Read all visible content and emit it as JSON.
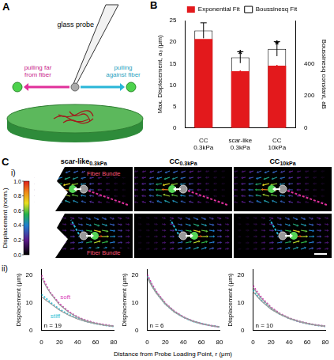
{
  "panel_labels": {
    "a": "A",
    "b": "B",
    "c": "C",
    "c_i": "i)",
    "c_ii": "ii)"
  },
  "panel_a": {
    "probe_label": "glass probe",
    "left_label": "pulling far from fiber",
    "right_label": "pulling against fiber"
  },
  "panel_c_i": {
    "headers": [
      "scar-like0.3kPa",
      "CC0.3kPa",
      "CC10kPa"
    ],
    "annotation": "Fiber Bundle",
    "colorbar": {
      "label": "Displacement (norm.)",
      "range": [
        0,
        1
      ],
      "ticks": [
        {
          "value": 0,
          "label": "0.0"
        },
        {
          "value": 0.2,
          "label": "0.2"
        },
        {
          "value": 0.4,
          "label": "0.4"
        },
        {
          "value": 0.6,
          "label": "0.6"
        },
        {
          "value": 0.8,
          "label": "0.8"
        },
        {
          "value": 1,
          "label": "1.0"
        }
      ]
    }
  },
  "panel_c_ii": {
    "x_label": "Distance from Probe Loading Point, r (μm)"
  },
  "chart_data": [
    {
      "type": "bar",
      "categories": [
        "CC0.3kPa",
        "scar-like0.3kPa",
        "CC10kPa"
      ],
      "y_label": "Max. Displacement, a₀ (μm)",
      "y2_label": "Boussinesq constant, aB",
      "series": [
        {
          "name": "Exponential Fit",
          "color": "#e3191c",
          "values": [
            20.7,
            13.2,
            14.5
          ],
          "significance": [
            null,
            "*",
            "*"
          ]
        },
        {
          "name": "Boussinesq Fit",
          "color": "#ffffff",
          "axis": "y2",
          "values": [
            605,
            438,
            491
          ],
          "errors": [
            48,
            35,
            45
          ],
          "significance": [
            null,
            "*",
            "*"
          ]
        }
      ],
      "ylim": [
        0,
        25
      ],
      "yticks": [
        0,
        5,
        10,
        15,
        20,
        25
      ],
      "y2lim": [
        0,
        667
      ],
      "y2ticks": [
        0,
        200,
        400
      ],
      "legend": "top",
      "grid": false
    },
    {
      "type": "line",
      "x": [
        0,
        5,
        10,
        20,
        30,
        40,
        50,
        60,
        70,
        80
      ],
      "y_label": "Displacement (μm)",
      "annotation": "n = 19",
      "series": [
        {
          "color": "#9a9a9a",
          "line_style": "solid",
          "values": [
            19.2,
            16.0,
            13.4,
            9.3,
            6.6,
            4.7,
            3.4,
            2.5,
            1.9,
            1.5
          ]
        },
        {
          "color": "#9a9a9a",
          "line_style": "solid",
          "values": [
            12.2,
            10.9,
            9.7,
            7.3,
            5.5,
            4.1,
            3.1,
            2.4,
            1.8,
            1.4
          ]
        },
        {
          "name": "soft",
          "color": "#d63ab5",
          "line_style": "dotted",
          "values": [
            20.0,
            16.5,
            13.6,
            9.6,
            6.8,
            4.8,
            3.5,
            2.6,
            2.0,
            1.5
          ]
        },
        {
          "name": "stiff",
          "color": "#35bfd3",
          "line_style": "dotted",
          "values": [
            13.0,
            11.6,
            10.1,
            7.6,
            5.7,
            4.3,
            3.2,
            2.4,
            1.8,
            1.4
          ]
        }
      ],
      "xlim": [
        0,
        80
      ],
      "xticks": [
        0,
        20,
        40,
        60,
        80
      ],
      "ylim": [
        0,
        22
      ],
      "yticks": [
        0,
        10,
        20
      ],
      "grid": false
    },
    {
      "type": "line",
      "x": [
        0,
        5,
        10,
        20,
        30,
        40,
        50,
        60,
        70,
        80
      ],
      "y_label": "Displacement (μm)",
      "annotation": "n = 6",
      "series": [
        {
          "color": "#9a9a9a",
          "line_style": "solid",
          "values": [
            19.5,
            16.4,
            13.8,
            9.7,
            6.8,
            4.8,
            3.4,
            2.4,
            1.7,
            1.2
          ]
        },
        {
          "color": "#9a9a9a",
          "line_style": "solid",
          "values": [
            19.0,
            16.0,
            13.4,
            9.4,
            6.6,
            4.7,
            3.3,
            2.4,
            1.7,
            1.2
          ]
        },
        {
          "color": "#d63ab5",
          "line_style": "dotted",
          "values": [
            20.2,
            16.8,
            14.0,
            9.8,
            6.9,
            4.8,
            3.4,
            2.4,
            1.7,
            1.2
          ]
        },
        {
          "color": "#35bfd3",
          "line_style": "dotted",
          "values": [
            19.6,
            16.3,
            13.6,
            9.5,
            6.7,
            4.7,
            3.3,
            2.4,
            1.7,
            1.2
          ]
        }
      ],
      "xlim": [
        0,
        80
      ],
      "xticks": [
        0,
        20,
        40,
        60,
        80
      ],
      "ylim": [
        0,
        22
      ],
      "yticks": [
        0,
        10,
        20
      ],
      "grid": false
    },
    {
      "type": "line",
      "x": [
        0,
        5,
        10,
        20,
        30,
        40,
        50,
        60,
        70,
        80
      ],
      "y_label": "Displacement (μm)",
      "annotation": "n = 10",
      "series": [
        {
          "color": "#9a9a9a",
          "line_style": "solid",
          "values": [
            15.5,
            13.3,
            11.3,
            8.1,
            5.9,
            4.4,
            3.3,
            2.5,
            1.9,
            1.5
          ]
        },
        {
          "color": "#9a9a9a",
          "line_style": "solid",
          "values": [
            14.0,
            12.1,
            10.4,
            7.6,
            5.7,
            4.2,
            3.2,
            2.4,
            1.8,
            1.4
          ]
        },
        {
          "color": "#d63ab5",
          "line_style": "dotted",
          "values": [
            16.2,
            13.7,
            11.6,
            8.3,
            6.0,
            4.4,
            3.3,
            2.5,
            1.9,
            1.5
          ]
        },
        {
          "color": "#35bfd3",
          "line_style": "dotted",
          "values": [
            14.5,
            12.4,
            10.6,
            7.8,
            5.8,
            4.3,
            3.2,
            2.4,
            1.8,
            1.4
          ]
        }
      ],
      "xlim": [
        0,
        80
      ],
      "xticks": [
        0,
        20,
        40,
        60,
        80
      ],
      "ylim": [
        0,
        22
      ],
      "yticks": [
        0,
        10,
        20
      ],
      "grid": false
    }
  ]
}
